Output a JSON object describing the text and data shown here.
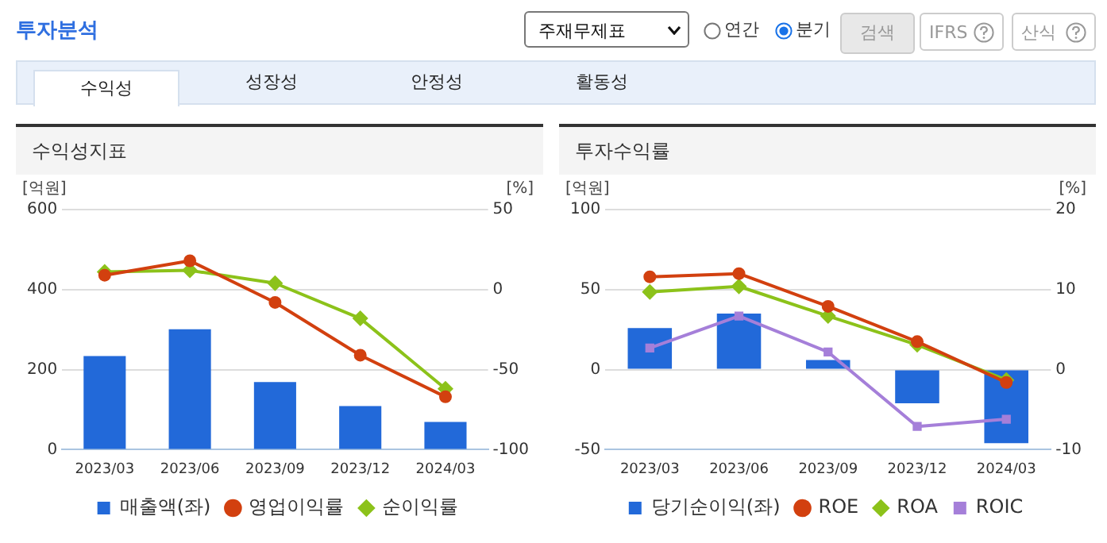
{
  "chart_data": [
    {
      "type": "other",
      "title": "투자분석",
      "annotations": [
        "주재무제표",
        "연간",
        "분기",
        "검색",
        "IFRS",
        "산식",
        "수익성",
        "성장성",
        "안정성",
        "활동성"
      ]
    },
    {
      "type": "bar",
      "title": "수익성지표",
      "ylabel": "[억원]",
      "y2label": "[%]",
      "categories": [
        "2023/03",
        "2023/06",
        "2023/09",
        "2023/12",
        "2024/03"
      ],
      "series": [
        {
          "name": "매출액(좌)",
          "type": "bar",
          "color": "#2269d9",
          "values": [
            234,
            301,
            169,
            109,
            69
          ]
        },
        {
          "name": "영업이익률",
          "type": "line",
          "axis": "y2",
          "marker": "circle",
          "color": "#d2400f",
          "values": [
            9,
            18,
            -8,
            -41,
            -67
          ]
        },
        {
          "name": "순이익률",
          "type": "line",
          "axis": "y2",
          "marker": "diamond",
          "color": "#8cc21a",
          "values": [
            11,
            12,
            4,
            -18,
            -62
          ]
        }
      ],
      "ylim": [
        0,
        600
      ],
      "yticks": [
        0,
        200,
        400,
        600
      ],
      "y2lim": [
        -100,
        50
      ],
      "y2ticks": [
        -100,
        -50,
        0,
        50
      ],
      "grid": "y",
      "legend": "bottom"
    },
    {
      "type": "bar",
      "title": "투자수익률",
      "ylabel": "[억원]",
      "y2label": "[%]",
      "categories": [
        "2023/03",
        "2023/06",
        "2023/09",
        "2023/12",
        "2024/03"
      ],
      "series": [
        {
          "name": "당기순이익(좌)",
          "type": "bar",
          "color": "#2269d9",
          "values": [
            26,
            35,
            6,
            -21,
            -46
          ]
        },
        {
          "name": "ROE",
          "type": "line",
          "axis": "y2",
          "marker": "circle",
          "color": "#d2400f",
          "values": [
            11.6,
            12,
            7.9,
            3.5,
            -1.6
          ]
        },
        {
          "name": "ROA",
          "type": "line",
          "axis": "y2",
          "marker": "diamond",
          "color": "#8cc21a",
          "values": [
            9.7,
            10.4,
            6.7,
            3.1,
            -1.3
          ]
        },
        {
          "name": "ROIC",
          "type": "line",
          "axis": "y2",
          "marker": "square",
          "color": "#a57fd9",
          "values": [
            2.7,
            6.7,
            2.2,
            -7.1,
            -6.2
          ]
        }
      ],
      "ylim": [
        -50,
        100
      ],
      "yticks": [
        -50,
        0,
        50,
        100
      ],
      "y2lim": [
        -10,
        20
      ],
      "y2ticks": [
        -10,
        0,
        10,
        20
      ],
      "grid": "y",
      "legend": "bottom"
    }
  ]
}
